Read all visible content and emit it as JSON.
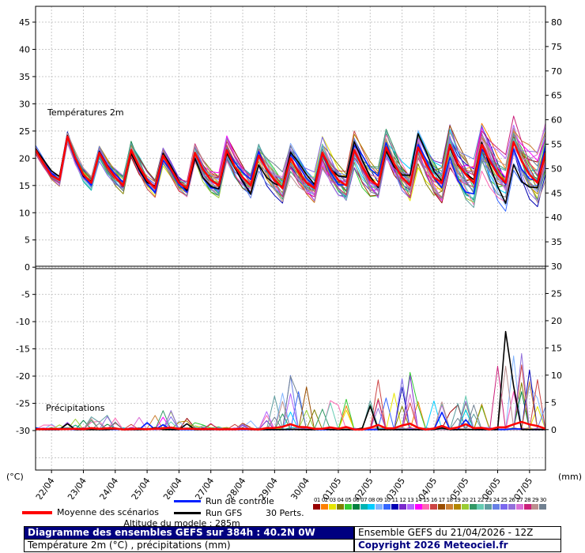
{
  "chart_data": {
    "type": "line",
    "title": "Diagramme des ensembles GEFS sur 384h : 40.2N 0W",
    "subtitle": "Température 2m (°C) , précipitations (mm)",
    "run_info": "Ensemble GEFS du 21/04/2026 - 12Z",
    "time_step_hours": 6,
    "x_tick_labels": [
      "22/04",
      "23/04",
      "24/04",
      "25/04",
      "26/04",
      "27/04",
      "28/04",
      "29/04",
      "30/04",
      "01/05",
      "02/05",
      "03/05",
      "04/05",
      "05/05",
      "06/05",
      "07/05"
    ],
    "axes": {
      "left_label": "(°C)",
      "right_label": "(mm)",
      "left_ticks": [
        45,
        40,
        35,
        30,
        25,
        20,
        15,
        10,
        5,
        0,
        -5,
        -10,
        -15,
        -20,
        -25,
        -30
      ],
      "right_ticks": [
        80,
        75,
        70,
        65,
        60,
        55,
        50,
        45,
        40,
        35,
        30,
        25,
        20,
        15,
        10,
        5,
        0
      ],
      "grid": true
    },
    "panels": [
      {
        "label": "Températures 2m"
      },
      {
        "label": "Précipitations"
      }
    ],
    "mean_temperature_c": [
      21.5,
      19,
      16.8,
      16,
      24,
      20,
      17,
      15.5,
      21,
      18.5,
      16.5,
      15,
      21.5,
      18.5,
      16,
      14.5,
      20.5,
      18,
      15.5,
      14.5,
      21,
      18,
      16,
      15,
      21.5,
      18.5,
      16.5,
      15,
      20.5,
      18,
      16,
      14.5,
      20,
      17.5,
      15.5,
      14.5,
      21,
      18,
      16,
      15,
      21.5,
      18.5,
      16,
      15,
      22,
      19,
      16.5,
      15,
      22,
      19,
      16.5,
      15.5,
      22.5,
      19,
      17,
      15.5,
      22.5,
      19.5,
      17,
      15.5,
      23,
      19.5,
      17,
      15.5,
      21
    ],
    "temperature_spread_daily_c": [
      0.6,
      1.0,
      1.3,
      1.5,
      1.7,
      1.9,
      2.1,
      2.3,
      2.5,
      2.7,
      2.9,
      3.1,
      3.4,
      3.7,
      4.0,
      4.4,
      4.8
    ],
    "precip_envelope_daily_mm": [
      0.5,
      2.5,
      3,
      1.5,
      4.5,
      1.5,
      1,
      3,
      10,
      6,
      6,
      13,
      10,
      7,
      6,
      18,
      7
    ],
    "n_perturbations": 30,
    "colors": {
      "mean": "#ff0000",
      "control": "#0020ff",
      "gfs": "#000000",
      "grid": "#c8c8c8",
      "perturbations": [
        "#990000",
        "#ff8000",
        "#e6e600",
        "#808000",
        "#33cc33",
        "#008040",
        "#00b3b3",
        "#00ccff",
        "#80b3ff",
        "#3366ff",
        "#0000b3",
        "#7a29cc",
        "#b366ff",
        "#ff00ff",
        "#ff66b3",
        "#cc4444",
        "#994d00",
        "#cc8033",
        "#b38600",
        "#99cc33",
        "#339966",
        "#66ccb3",
        "#5f9ea0",
        "#6680e6",
        "#7b68ee",
        "#9370db",
        "#da70d6",
        "#cc1f7a",
        "#bc8f8f",
        "#708090"
      ]
    }
  },
  "legend": {
    "mean_label": "Moyenne des scénarios",
    "control_label": "Run de contrôle",
    "gfs_label": "Run GFS",
    "perts_label": "30 Perts.",
    "altitude_label": "Altitude du modele : 285m"
  },
  "footer": {
    "title": "Diagramme des ensembles GEFS sur 384h : 40.2N 0W",
    "subtitle": "Température 2m (°C) , précipitations (mm)",
    "run_info": "Ensemble GEFS du 21/04/2026 - 12Z",
    "copyright": "Copyright 2026 Meteociel.fr"
  }
}
